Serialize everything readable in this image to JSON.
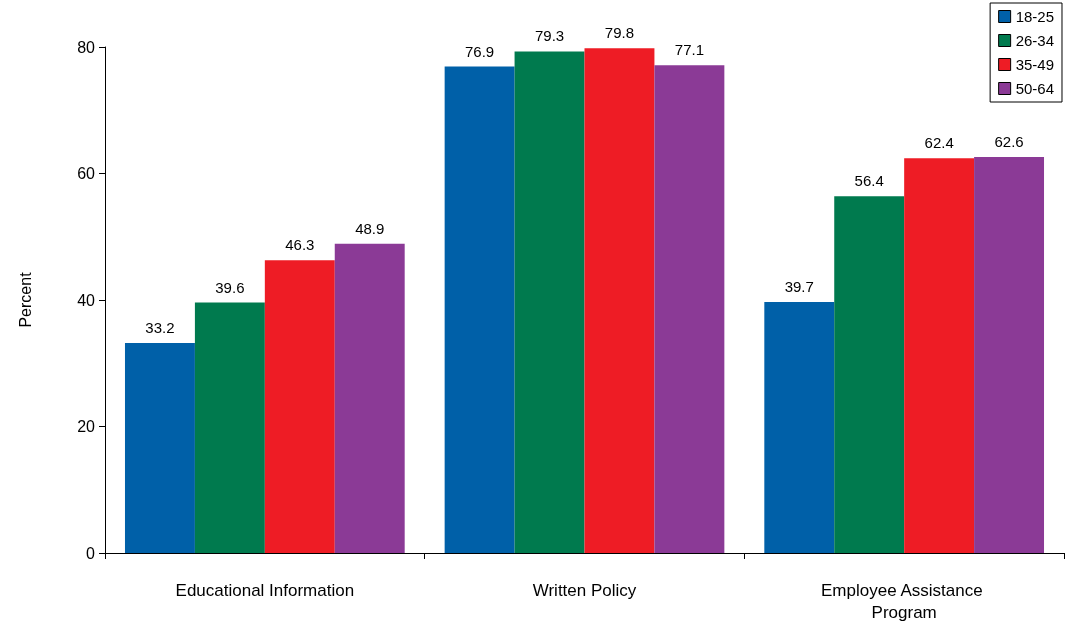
{
  "chart_data": {
    "type": "bar",
    "ylabel": "Percent",
    "categories": [
      "Educational Information",
      "Written Policy",
      "Employee Assistance Program"
    ],
    "series": [
      {
        "name": "18-25",
        "color": "#0060a8",
        "values": [
          33.2,
          76.9,
          39.7
        ]
      },
      {
        "name": "26-34",
        "color": "#007a4e",
        "values": [
          39.6,
          79.3,
          56.4
        ]
      },
      {
        "name": "35-49",
        "color": "#ee1c25",
        "values": [
          46.3,
          79.8,
          62.4
        ]
      },
      {
        "name": "50-64",
        "color": "#8b3a96",
        "values": [
          48.9,
          77.1,
          62.6
        ]
      }
    ],
    "ylim": [
      0,
      80
    ],
    "yticks": [
      0,
      20,
      40,
      60,
      80
    ],
    "grid": false,
    "legend": "top right",
    "data_labels": true
  }
}
